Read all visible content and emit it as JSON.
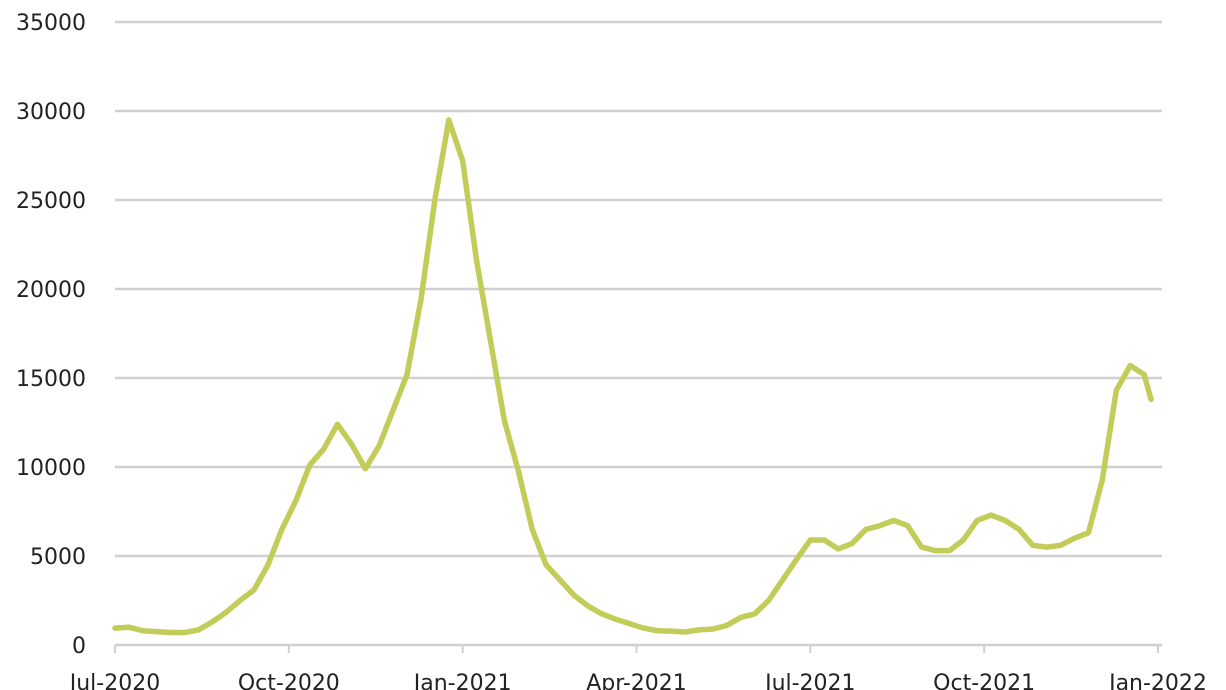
{
  "chart_data": {
    "type": "line",
    "x": [
      2020.5,
      2020.52,
      2020.54,
      2020.56,
      2020.58,
      2020.6,
      2020.62,
      2020.64,
      2020.66,
      2020.68,
      2020.7,
      2020.72,
      2020.74,
      2020.76,
      2020.78,
      2020.8,
      2020.82,
      2020.84,
      2020.86,
      2020.88,
      2020.9,
      2020.92,
      2020.94,
      2020.96,
      2020.98,
      2021.0,
      2021.02,
      2021.04,
      2021.06,
      2021.08,
      2021.1,
      2021.12,
      2021.14,
      2021.16,
      2021.18,
      2021.2,
      2021.22,
      2021.24,
      2021.26,
      2021.28,
      2021.3,
      2021.32,
      2021.34,
      2021.36,
      2021.38,
      2021.4,
      2021.42,
      2021.44,
      2021.46,
      2021.48,
      2021.5,
      2021.52,
      2021.54,
      2021.56,
      2021.58,
      2021.6,
      2021.62,
      2021.64,
      2021.66,
      2021.68,
      2021.7,
      2021.72,
      2021.74,
      2021.76,
      2021.78,
      2021.8,
      2021.82,
      2021.84,
      2021.86,
      2021.88,
      2021.9,
      2021.92,
      2021.94,
      2021.96,
      2021.98,
      2021.99
    ],
    "series": [
      {
        "color": "#c2cc58",
        "values": [
          950,
          1000,
          800,
          750,
          700,
          700,
          850,
          1300,
          1850,
          2500,
          3100,
          4500,
          6500,
          8100,
          10100,
          11000,
          12400,
          11300,
          9900,
          11200,
          13200,
          15200,
          19400,
          25000,
          29500,
          27200,
          21600,
          17100,
          12600,
          9800,
          6500,
          4500,
          3650,
          2800,
          2200,
          1750,
          1450,
          1200,
          950,
          800,
          780,
          730,
          850,
          900,
          1100,
          1550,
          1750,
          2500,
          3650,
          4800,
          5900,
          5900,
          5400,
          5700,
          6500,
          6700,
          7000,
          6700,
          5500,
          5300,
          5300,
          5900,
          7000,
          7300,
          7000,
          6500,
          5600,
          5500,
          5600,
          6000,
          6300,
          9300,
          14300,
          15700,
          15200,
          13800
        ]
      }
    ],
    "xlim": [
      2020.5,
      2022.0
    ],
    "xticks": [
      {
        "value": 2020.5,
        "label": "Jul-2020"
      },
      {
        "value": 2020.75,
        "label": "Oct-2020"
      },
      {
        "value": 2021.0,
        "label": "Jan-2021"
      },
      {
        "value": 2021.25,
        "label": "Apr-2021"
      },
      {
        "value": 2021.5,
        "label": "Jul-2021"
      },
      {
        "value": 2021.75,
        "label": "Oct-2021"
      },
      {
        "value": 2022.0,
        "label": "Jan-2022"
      }
    ],
    "ylim": [
      0,
      35000
    ],
    "yticks": [
      0,
      5000,
      10000,
      15000,
      20000,
      25000,
      30000,
      35000
    ],
    "grid": true
  }
}
